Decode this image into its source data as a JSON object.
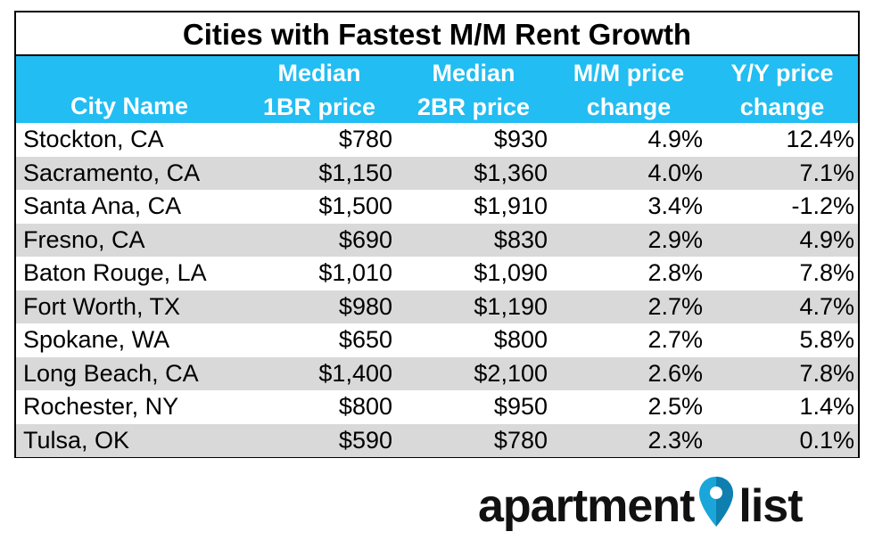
{
  "chart_data": {
    "type": "table",
    "title": "Cities with Fastest M/M Rent Growth",
    "columns": [
      [
        "Median",
        "1BR price"
      ],
      [
        "Median",
        "2BR price"
      ],
      [
        "M/M price",
        "change"
      ],
      [
        "Y/Y price",
        "change"
      ]
    ],
    "city_header": "City Name",
    "rows": [
      {
        "city": "Stockton, CA",
        "br1": "$780",
        "br2": "$930",
        "mm": "4.9%",
        "yy": "12.4%"
      },
      {
        "city": "Sacramento, CA",
        "br1": "$1,150",
        "br2": "$1,360",
        "mm": "4.0%",
        "yy": "7.1%"
      },
      {
        "city": "Santa Ana, CA",
        "br1": "$1,500",
        "br2": "$1,910",
        "mm": "3.4%",
        "yy": "-1.2%"
      },
      {
        "city": "Fresno, CA",
        "br1": "$690",
        "br2": "$830",
        "mm": "2.9%",
        "yy": "4.9%"
      },
      {
        "city": "Baton Rouge, LA",
        "br1": "$1,010",
        "br2": "$1,090",
        "mm": "2.8%",
        "yy": "7.8%"
      },
      {
        "city": "Fort Worth, TX",
        "br1": "$980",
        "br2": "$1,190",
        "mm": "2.7%",
        "yy": "4.7%"
      },
      {
        "city": "Spokane, WA",
        "br1": "$650",
        "br2": "$800",
        "mm": "2.7%",
        "yy": "5.8%"
      },
      {
        "city": "Long Beach, CA",
        "br1": "$1,400",
        "br2": "$2,100",
        "mm": "2.6%",
        "yy": "7.8%"
      },
      {
        "city": "Rochester, NY",
        "br1": "$800",
        "br2": "$950",
        "mm": "2.5%",
        "yy": "1.4%"
      },
      {
        "city": "Tulsa, OK",
        "br1": "$590",
        "br2": "$780",
        "mm": "2.3%",
        "yy": "0.1%"
      }
    ]
  },
  "colors": {
    "header_bg": "#22bdf2",
    "stripe": "#d9d9d9",
    "logo_pin": "#1aa6d8"
  },
  "logo": {
    "left": "apartment",
    "right": "list"
  }
}
